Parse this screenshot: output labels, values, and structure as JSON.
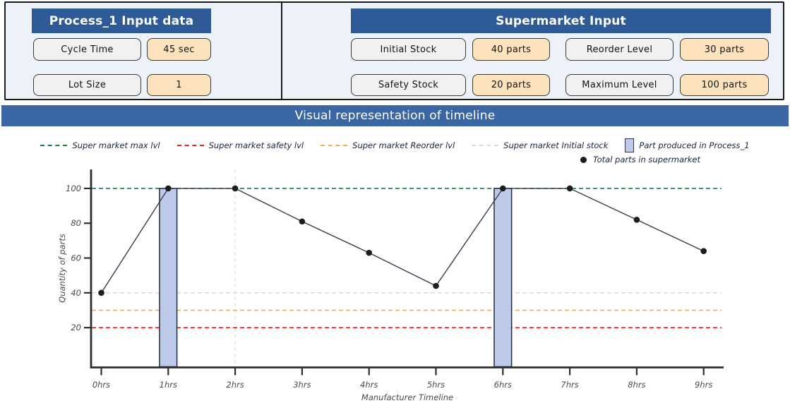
{
  "process_panel": {
    "title": "Process_1 Input data",
    "rows": [
      {
        "label": "Cycle Time",
        "value": "45 sec"
      },
      {
        "label": "Lot Size",
        "value": "1"
      }
    ]
  },
  "supermarket_panel": {
    "title": "Supermarket Input",
    "rows": [
      {
        "label": "Initial Stock",
        "value": "40 parts"
      },
      {
        "label": "Reorder Level",
        "value": "30 parts"
      },
      {
        "label": "Safety Stock",
        "value": "20 parts"
      },
      {
        "label": "Maximum Level",
        "value": "100 parts"
      }
    ]
  },
  "banner": {
    "title": "Visual representation of timeline"
  },
  "legend": {
    "items": [
      {
        "label": "Super market max lvl",
        "swatch": "dash",
        "color": "#1c8044"
      },
      {
        "label": "Super market safety lvl",
        "swatch": "dash",
        "color": "#e81d1d"
      },
      {
        "label": "Super market Reorder lvl",
        "swatch": "dash",
        "color": "#f3af4d"
      },
      {
        "label": "Super market Initial stock",
        "swatch": "dash",
        "color": "#dbdbdb"
      },
      {
        "label": "Part produced in Process_1",
        "swatch": "bar",
        "color": "#bdcaea"
      },
      {
        "label": "Total parts in supermarket",
        "swatch": "dot",
        "color": "#1d1d1d"
      }
    ]
  },
  "chart_data": {
    "type": "line",
    "title": "",
    "xlabel": "Manufacturer Timeline",
    "ylabel": "Quantity of parts",
    "x": [
      0,
      1,
      2,
      3,
      4,
      5,
      6,
      7,
      8,
      9
    ],
    "x_tick_labels": [
      "0hrs",
      "1hrs",
      "2hrs",
      "3hrs",
      "4hrs",
      "5hrs",
      "6hrs",
      "7hrs",
      "8hrs",
      "9hrs"
    ],
    "yticks": [
      20,
      40,
      60,
      80,
      100
    ],
    "ylim": [
      0,
      112
    ],
    "grid": "off",
    "series": [
      {
        "name": "Total parts in supermarket",
        "type": "line+marker",
        "values": [
          40,
          100,
          100,
          81,
          63,
          44,
          100,
          100,
          82,
          64
        ],
        "color": "#343b50",
        "marker_color": "#1d1d1d"
      },
      {
        "name": "Part produced in Process_1",
        "type": "bar",
        "bar_positions": [
          1,
          6
        ],
        "bar_top": 100,
        "bar_width_hours": 0.26,
        "fill": "#bdcaea",
        "stroke": "#232b3f"
      }
    ],
    "reference_lines": [
      {
        "name": "Super market max lvl",
        "value": 100,
        "color": "#1c8044",
        "style": "dashed"
      },
      {
        "name": "Super market Initial stock",
        "value": 40,
        "color": "#dbdbdb",
        "style": "dashed"
      },
      {
        "name": "Super market Reorder lvl",
        "value": 30,
        "color": "#f3af4d",
        "style": "dashed"
      },
      {
        "name": "Super market safety lvl",
        "value": 20,
        "color": "#e81d1d",
        "style": "dashed"
      }
    ],
    "vertical_marker_line": {
      "x": 2,
      "color": "#e2e2e2",
      "style": "dashed"
    }
  },
  "colors": {
    "panel_header_blue": "#2e5b97",
    "banner_blue": "#3a66a4",
    "panel_background": "#edf2f8",
    "label_box": "#f1f1f1",
    "value_box": "#fde3bd",
    "axis": "#2e2e2e",
    "tick_text": "#4a4a4a"
  }
}
